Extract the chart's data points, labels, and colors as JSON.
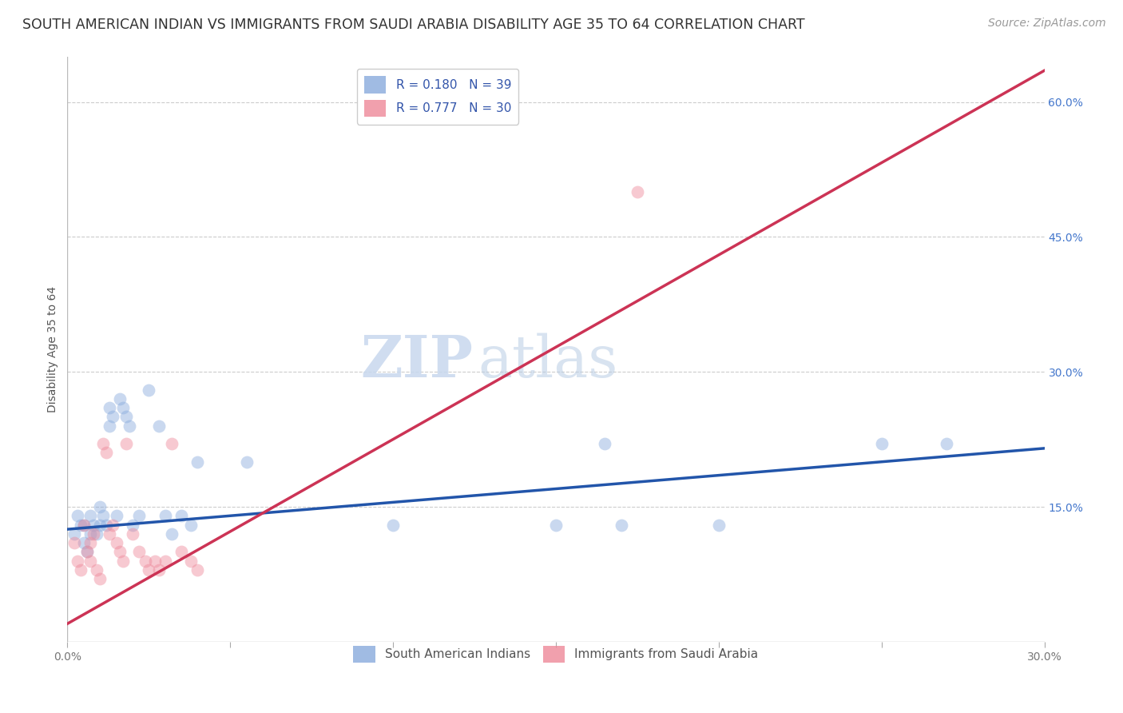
{
  "title": "SOUTH AMERICAN INDIAN VS IMMIGRANTS FROM SAUDI ARABIA DISABILITY AGE 35 TO 64 CORRELATION CHART",
  "source": "Source: ZipAtlas.com",
  "ylabel": "Disability Age 35 to 64",
  "xlim": [
    0.0,
    0.3
  ],
  "ylim": [
    0.0,
    0.65
  ],
  "xticks": [
    0.0,
    0.05,
    0.1,
    0.15,
    0.2,
    0.25,
    0.3
  ],
  "yticks_right": [
    0.15,
    0.3,
    0.45,
    0.6
  ],
  "ytick_labels_right": [
    "15.0%",
    "30.0%",
    "45.0%",
    "60.0%"
  ],
  "xtick_labels": [
    "0.0%",
    "",
    "",
    "",
    "",
    "",
    "30.0%"
  ],
  "blue_scatter_x": [
    0.002,
    0.003,
    0.004,
    0.005,
    0.005,
    0.006,
    0.007,
    0.007,
    0.008,
    0.009,
    0.01,
    0.01,
    0.011,
    0.012,
    0.013,
    0.013,
    0.014,
    0.015,
    0.016,
    0.017,
    0.018,
    0.019,
    0.02,
    0.022,
    0.025,
    0.028,
    0.03,
    0.032,
    0.035,
    0.038,
    0.04,
    0.055,
    0.1,
    0.15,
    0.165,
    0.17,
    0.2,
    0.25,
    0.27
  ],
  "blue_scatter_y": [
    0.12,
    0.14,
    0.13,
    0.13,
    0.11,
    0.1,
    0.12,
    0.14,
    0.13,
    0.12,
    0.15,
    0.13,
    0.14,
    0.13,
    0.24,
    0.26,
    0.25,
    0.14,
    0.27,
    0.26,
    0.25,
    0.24,
    0.13,
    0.14,
    0.28,
    0.24,
    0.14,
    0.12,
    0.14,
    0.13,
    0.2,
    0.2,
    0.13,
    0.13,
    0.22,
    0.13,
    0.13,
    0.22,
    0.22
  ],
  "pink_scatter_x": [
    0.002,
    0.003,
    0.004,
    0.005,
    0.006,
    0.007,
    0.007,
    0.008,
    0.009,
    0.01,
    0.011,
    0.012,
    0.013,
    0.014,
    0.015,
    0.016,
    0.017,
    0.018,
    0.02,
    0.022,
    0.024,
    0.025,
    0.027,
    0.028,
    0.03,
    0.032,
    0.035,
    0.038,
    0.04,
    0.175
  ],
  "pink_scatter_y": [
    0.11,
    0.09,
    0.08,
    0.13,
    0.1,
    0.09,
    0.11,
    0.12,
    0.08,
    0.07,
    0.22,
    0.21,
    0.12,
    0.13,
    0.11,
    0.1,
    0.09,
    0.22,
    0.12,
    0.1,
    0.09,
    0.08,
    0.09,
    0.08,
    0.09,
    0.22,
    0.1,
    0.09,
    0.08,
    0.5
  ],
  "blue_line_x": [
    0.0,
    0.3
  ],
  "blue_line_y": [
    0.125,
    0.215
  ],
  "pink_line_x": [
    0.0,
    0.3
  ],
  "pink_line_y": [
    0.02,
    0.635
  ],
  "watermark_zip": "ZIP",
  "watermark_atlas": "atlas",
  "background_color": "#ffffff",
  "scatter_alpha": 0.45,
  "scatter_size": 130,
  "blue_color": "#88aadd",
  "pink_color": "#ee8899",
  "line_blue_color": "#2255aa",
  "line_pink_color": "#cc3355",
  "grid_color": "#cccccc",
  "grid_style": "--",
  "title_fontsize": 12.5,
  "axis_label_fontsize": 10,
  "tick_fontsize": 10,
  "legend_fontsize": 11,
  "source_fontsize": 10,
  "legend_text_color": "#3355aa",
  "legend_n_color": "#33aa33"
}
